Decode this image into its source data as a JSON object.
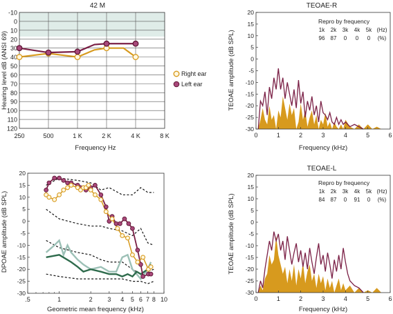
{
  "colors": {
    "right_ear": "#d79a1e",
    "left_ear": "#7a1f45",
    "teoae_fill": "#d79a1e",
    "teoae_line": "#7a1f45",
    "noise": "#111111",
    "dp_noise_dark": "#2e6b4c",
    "dp_noise_light": "#9cc0b6",
    "normal_band": "#dfece8"
  },
  "chart_data": [
    {
      "type": "line",
      "id": "audiogram",
      "title": "42 M",
      "xlabel": "Frequency Hz",
      "ylabel": "Hearing level dB (ANSI 69)",
      "categories": [
        "250",
        "500",
        "1 K",
        "2 K",
        "4 K",
        "8 K"
      ],
      "yticks": [
        "-10",
        "0",
        "10",
        "20",
        "30",
        "40",
        "50",
        "60",
        "70",
        "80",
        "90",
        "100",
        "110",
        "120"
      ],
      "ylim": [
        -10,
        120
      ],
      "inverted_y": true,
      "normal_band": [
        -10,
        20
      ],
      "legend": [
        {
          "name": "Right ear"
        },
        {
          "name": "Left ear"
        }
      ],
      "series": [
        {
          "name": "Right ear",
          "x": [
            "250",
            "500",
            "1 K",
            "1.5 K",
            "2 K",
            "3 K",
            "4 K"
          ],
          "values": [
            40,
            36,
            40,
            32,
            30,
            30,
            40
          ]
        },
        {
          "name": "Left ear",
          "x": [
            "250",
            "500",
            "1 K",
            "1.5 K",
            "2 K",
            "3 K",
            "4 K"
          ],
          "values": [
            30,
            35,
            34,
            26,
            25,
            25,
            25
          ]
        }
      ]
    },
    {
      "type": "area",
      "id": "teoae_r",
      "title": "TEOAE-R",
      "xlabel": "Frequency (kHz)",
      "ylabel": "TEOAE amplitude (dB SPL)",
      "xlim": [
        0,
        6
      ],
      "ylim": [
        -30,
        20
      ],
      "xticks": [
        "0",
        "1",
        "2",
        "3",
        "4",
        "5",
        "6"
      ],
      "yticks": [
        "20",
        "15",
        "10",
        "5",
        "0",
        "-5",
        "-10",
        "-15",
        "-20",
        "-25",
        "-30"
      ],
      "repro": {
        "heading": "Repro by frequency",
        "freqs": [
          "1k",
          "2k",
          "3k",
          "4k",
          "5k",
          "(Hz)"
        ],
        "values": [
          "96",
          "87",
          "0",
          "0",
          "0",
          "(%)"
        ]
      },
      "response": [
        [
          0.1,
          -30
        ],
        [
          0.2,
          -18
        ],
        [
          0.3,
          -20
        ],
        [
          0.4,
          -14
        ],
        [
          0.5,
          -24
        ],
        [
          0.6,
          -12
        ],
        [
          0.7,
          -17
        ],
        [
          0.8,
          -8
        ],
        [
          0.9,
          -13
        ],
        [
          1.0,
          -4
        ],
        [
          1.1,
          -13
        ],
        [
          1.2,
          -8
        ],
        [
          1.3,
          -17
        ],
        [
          1.4,
          -10
        ],
        [
          1.5,
          -15
        ],
        [
          1.6,
          -20
        ],
        [
          1.7,
          -13
        ],
        [
          1.8,
          -21
        ],
        [
          1.9,
          -9
        ],
        [
          2.0,
          -19
        ],
        [
          2.1,
          -14
        ],
        [
          2.2,
          -25
        ],
        [
          2.3,
          -18
        ],
        [
          2.4,
          -22
        ],
        [
          2.5,
          -16
        ],
        [
          2.6,
          -24
        ],
        [
          2.7,
          -20
        ],
        [
          2.8,
          -27
        ],
        [
          2.9,
          -18
        ],
        [
          3.0,
          -23
        ],
        [
          3.1,
          -24
        ],
        [
          3.2,
          -26
        ],
        [
          3.3,
          -23
        ],
        [
          3.4,
          -27
        ],
        [
          3.5,
          -28
        ],
        [
          3.6,
          -25
        ],
        [
          3.7,
          -28
        ],
        [
          3.8,
          -26
        ],
        [
          3.9,
          -28
        ],
        [
          4.0,
          -27
        ],
        [
          4.2,
          -29
        ],
        [
          4.4,
          -28
        ],
        [
          4.6,
          -29
        ],
        [
          4.8,
          -30
        ]
      ],
      "noise": [
        [
          0.1,
          -30
        ],
        [
          0.2,
          -26
        ],
        [
          0.3,
          -21
        ],
        [
          0.4,
          -26
        ],
        [
          0.5,
          -28
        ],
        [
          0.6,
          -20
        ],
        [
          0.7,
          -26
        ],
        [
          0.8,
          -24
        ],
        [
          0.9,
          -30
        ],
        [
          1.0,
          -22
        ],
        [
          1.1,
          -25
        ],
        [
          1.2,
          -16
        ],
        [
          1.3,
          -21
        ],
        [
          1.4,
          -26
        ],
        [
          1.5,
          -19
        ],
        [
          1.6,
          -24
        ],
        [
          1.7,
          -21
        ],
        [
          1.8,
          -30
        ],
        [
          1.9,
          -27
        ],
        [
          2.0,
          -19
        ],
        [
          2.1,
          -26
        ],
        [
          2.2,
          -22
        ],
        [
          2.3,
          -29
        ],
        [
          2.4,
          -25
        ],
        [
          2.5,
          -22
        ],
        [
          2.6,
          -28
        ],
        [
          2.7,
          -24
        ],
        [
          2.8,
          -30
        ],
        [
          2.9,
          -26
        ],
        [
          3.0,
          -28
        ],
        [
          3.1,
          -23
        ],
        [
          3.2,
          -29
        ],
        [
          3.3,
          -27
        ],
        [
          3.4,
          -30
        ],
        [
          3.5,
          -27
        ],
        [
          3.6,
          -29
        ],
        [
          3.7,
          -30
        ],
        [
          3.8,
          -28
        ],
        [
          3.9,
          -30
        ],
        [
          4.0,
          -26
        ],
        [
          4.2,
          -29
        ],
        [
          4.4,
          -30
        ],
        [
          4.6,
          -28
        ],
        [
          4.8,
          -30
        ],
        [
          5.0,
          -28
        ],
        [
          5.2,
          -30
        ],
        [
          5.4,
          -29
        ],
        [
          5.6,
          -30
        ]
      ]
    },
    {
      "type": "line",
      "id": "dpoae",
      "title": "",
      "xlabel": "Geometric mean frequency (kHz)",
      "ylabel": "DPOAE amplitude (dB SPL)",
      "xscale": "log",
      "xlim": [
        0.5,
        10
      ],
      "xticks": [
        ".5",
        "1",
        "2",
        "3",
        "4",
        "5",
        "6",
        "7",
        "8",
        "10"
      ],
      "ylim": [
        -30,
        20
      ],
      "yticks": [
        "20",
        "15",
        "10",
        "5",
        "0",
        "-5",
        "-10",
        "-15",
        "-20",
        "-25",
        "-30"
      ],
      "series": [
        {
          "name": "Right ear",
          "x": [
            0.75,
            0.8,
            0.9,
            1.0,
            1.1,
            1.2,
            1.3,
            1.5,
            1.6,
            1.7,
            1.8,
            1.9,
            2.0,
            2.2,
            2.5,
            2.8,
            3.2,
            3.6,
            4.0,
            4.5,
            5.0,
            5.6,
            6.3,
            7.1,
            7.5
          ],
          "values": [
            11,
            10,
            9,
            11,
            13,
            14,
            15,
            14,
            13,
            14,
            14,
            15,
            13,
            11,
            9,
            4,
            1,
            -3,
            -6,
            -7,
            -14,
            -17,
            -15,
            -20,
            -19
          ]
        },
        {
          "name": "Left ear",
          "x": [
            0.75,
            0.8,
            0.9,
            1.0,
            1.1,
            1.2,
            1.3,
            1.5,
            1.6,
            1.8,
            2.0,
            2.2,
            2.5,
            2.8,
            3.0,
            3.2,
            3.5,
            3.8,
            4.2,
            4.6,
            5.0,
            5.6,
            6.0,
            6.3,
            7.1,
            7.5
          ],
          "values": [
            13,
            16,
            18,
            18,
            17,
            16,
            16,
            15,
            14,
            13,
            14,
            15,
            11,
            6,
            0,
            2,
            -1,
            -1,
            1,
            -1,
            -3,
            -12,
            -18,
            -23,
            -22,
            -22
          ]
        },
        {
          "name": "Normal upper",
          "x": [
            0.75,
            1.0,
            1.5,
            2.0,
            2.5,
            3.0,
            4.0,
            5.0,
            6.0,
            7.0,
            8.0
          ],
          "values": [
            15,
            18,
            17,
            16,
            13,
            14,
            11,
            11,
            14,
            12,
            12
          ]
        },
        {
          "name": "Normal mid",
          "x": [
            0.75,
            1.0,
            1.5,
            2.0,
            2.5,
            3.0,
            4.0,
            5.0,
            6.0,
            7.0,
            8.0
          ],
          "values": [
            5,
            1,
            -1,
            -2,
            -2,
            -3,
            -4,
            -6,
            -3,
            -9,
            -10
          ]
        },
        {
          "name": "Normal lower",
          "x": [
            0.75,
            1.0,
            1.5,
            2.0,
            2.5,
            3.0,
            4.0,
            5.0,
            6.0,
            7.0,
            8.0
          ],
          "values": [
            -8,
            -11,
            -13,
            -14,
            -16,
            -17,
            -17,
            -20,
            -22,
            -21,
            -20
          ]
        },
        {
          "name": "Normal bottom",
          "x": [
            0.75,
            1.0,
            1.5,
            2.0,
            2.5,
            3.0,
            4.0,
            5.0,
            6.0,
            7.0,
            8.0
          ],
          "values": [
            -22,
            -23,
            -24,
            -24,
            -24,
            -24,
            -24,
            -25,
            -25,
            -26,
            -25
          ]
        },
        {
          "name": "Noise R",
          "x": [
            0.75,
            0.9,
            1.0,
            1.1,
            1.2,
            1.3,
            1.5,
            1.7,
            2.0,
            2.5,
            3.0,
            3.5,
            4.0,
            4.5,
            5.0,
            6.0,
            7.0,
            7.5
          ],
          "values": [
            -13,
            -10,
            -8,
            -14,
            -10,
            -13,
            -16,
            -18,
            -20,
            -19,
            -21,
            -21,
            -15,
            -14,
            -20,
            -24,
            -20,
            -17
          ]
        },
        {
          "name": "Noise L",
          "x": [
            0.75,
            1.0,
            1.3,
            1.5,
            1.7,
            2.0,
            2.5,
            3.0,
            3.5,
            4.0,
            4.5,
            5.0,
            5.5,
            6.0,
            7.0,
            7.5
          ],
          "values": [
            -15,
            -14,
            -17,
            -19,
            -21,
            -20,
            -21,
            -22,
            -22,
            -23,
            -22,
            -23,
            -21,
            -22,
            -20,
            -18
          ]
        }
      ]
    },
    {
      "type": "area",
      "id": "teoae_l",
      "title": "TEOAE-L",
      "xlabel": "Frequency (kHz)",
      "ylabel": "TEOAE amplitude (dB SPL)",
      "xlim": [
        0,
        6
      ],
      "ylim": [
        -30,
        20
      ],
      "xticks": [
        "0",
        "1",
        "2",
        "3",
        "4",
        "5",
        "6"
      ],
      "yticks": [
        "20",
        "15",
        "10",
        "5",
        "0",
        "-5",
        "-10",
        "-15",
        "-20",
        "-25",
        "-30"
      ],
      "repro": {
        "heading": "Repro by frequency",
        "freqs": [
          "1k",
          "2k",
          "3k",
          "4k",
          "5k",
          "(Hz)"
        ],
        "values": [
          "84",
          "87",
          "0",
          "91",
          "0",
          "(%)"
        ]
      },
      "response": [
        [
          0.1,
          -30
        ],
        [
          0.2,
          -25
        ],
        [
          0.3,
          -28
        ],
        [
          0.4,
          -20
        ],
        [
          0.5,
          -14
        ],
        [
          0.6,
          -8
        ],
        [
          0.7,
          -12
        ],
        [
          0.8,
          -4
        ],
        [
          0.9,
          -8
        ],
        [
          1.0,
          -5
        ],
        [
          1.1,
          -12
        ],
        [
          1.2,
          -8
        ],
        [
          1.3,
          -16
        ],
        [
          1.4,
          -6
        ],
        [
          1.5,
          -12
        ],
        [
          1.6,
          -18
        ],
        [
          1.7,
          -13
        ],
        [
          1.8,
          -9
        ],
        [
          1.9,
          -17
        ],
        [
          2.0,
          -12
        ],
        [
          2.1,
          -19
        ],
        [
          2.2,
          -13
        ],
        [
          2.3,
          -20
        ],
        [
          2.4,
          -11
        ],
        [
          2.5,
          -17
        ],
        [
          2.6,
          -22
        ],
        [
          2.7,
          -15
        ],
        [
          2.8,
          -9
        ],
        [
          2.9,
          -18
        ],
        [
          3.0,
          -14
        ],
        [
          3.1,
          -21
        ],
        [
          3.2,
          -13
        ],
        [
          3.3,
          -18
        ],
        [
          3.4,
          -24
        ],
        [
          3.5,
          -16
        ],
        [
          3.6,
          -21
        ],
        [
          3.7,
          -14
        ],
        [
          3.8,
          -20
        ],
        [
          3.9,
          -11
        ],
        [
          4.0,
          -17
        ],
        [
          4.1,
          -22
        ],
        [
          4.2,
          -25
        ],
        [
          4.4,
          -27
        ],
        [
          4.6,
          -28
        ],
        [
          4.8,
          -30
        ]
      ],
      "noise": [
        [
          0.1,
          -30
        ],
        [
          0.2,
          -27
        ],
        [
          0.3,
          -29
        ],
        [
          0.4,
          -24
        ],
        [
          0.5,
          -22
        ],
        [
          0.6,
          -14
        ],
        [
          0.7,
          -18
        ],
        [
          0.8,
          -16
        ],
        [
          0.9,
          -6
        ],
        [
          1.0,
          -14
        ],
        [
          1.1,
          -18
        ],
        [
          1.2,
          -22
        ],
        [
          1.3,
          -19
        ],
        [
          1.4,
          -26
        ],
        [
          1.5,
          -20
        ],
        [
          1.6,
          -25
        ],
        [
          1.7,
          -18
        ],
        [
          1.8,
          -27
        ],
        [
          1.9,
          -20
        ],
        [
          2.0,
          -24
        ],
        [
          2.1,
          -17
        ],
        [
          2.2,
          -26
        ],
        [
          2.3,
          -21
        ],
        [
          2.4,
          -18
        ],
        [
          2.5,
          -25
        ],
        [
          2.6,
          -22
        ],
        [
          2.7,
          -28
        ],
        [
          2.8,
          -22
        ],
        [
          2.9,
          -26
        ],
        [
          3.0,
          -23
        ],
        [
          3.1,
          -29
        ],
        [
          3.2,
          -24
        ],
        [
          3.3,
          -28
        ],
        [
          3.4,
          -25
        ],
        [
          3.5,
          -30
        ],
        [
          3.6,
          -27
        ],
        [
          3.7,
          -24
        ],
        [
          3.8,
          -29
        ],
        [
          3.9,
          -26
        ],
        [
          4.0,
          -29
        ],
        [
          4.2,
          -27
        ],
        [
          4.4,
          -30
        ],
        [
          4.6,
          -28
        ],
        [
          4.8,
          -30
        ],
        [
          5.0,
          -29
        ],
        [
          5.2,
          -30
        ],
        [
          5.4,
          -28
        ],
        [
          5.6,
          -30
        ]
      ]
    }
  ]
}
